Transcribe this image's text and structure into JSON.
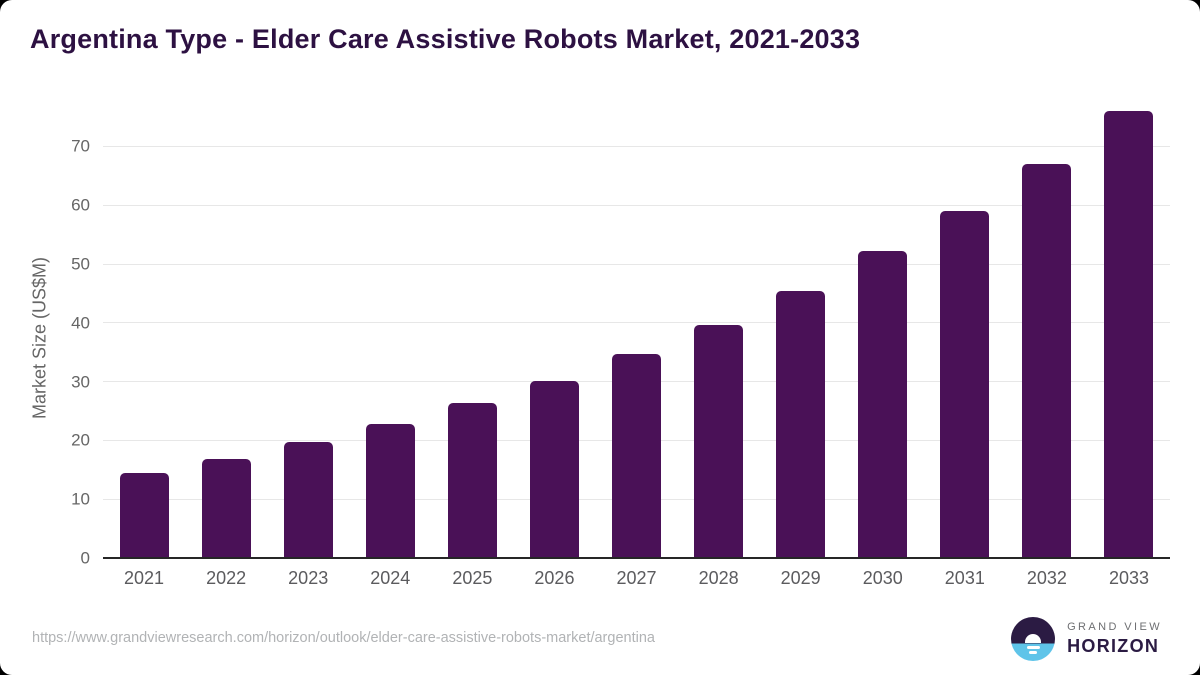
{
  "chart": {
    "title": "Argentina Type - Elder Care Assistive Robots Market, 2021-2033",
    "ylabel": "Market Size (US$M)"
  },
  "footer": {
    "source_url": "https://www.grandviewresearch.com/horizon/outlook/elder-care-assistive-robots-market/argentina",
    "logo": {
      "top_text": "GRAND VIEW",
      "bottom_text": "HORIZON"
    }
  },
  "colors": {
    "bar": "#4a1157",
    "title_text": "#2d1142",
    "axis_tick_text": "#666666",
    "x_label_text": "#5b5b5e",
    "gridline": "#e7e7e7",
    "axis_line": "#262626",
    "url_text": "#b1b3b5",
    "logo_dark": "#2b1b43",
    "logo_blue": "#5fc4e9",
    "logo_gray_text": "#6e6f72"
  },
  "chart_data": {
    "type": "bar",
    "title": "Argentina Type - Elder Care Assistive Robots Market, 2021-2033",
    "xlabel": "",
    "ylabel": "Market Size (US$M)",
    "categories": [
      "2021",
      "2022",
      "2023",
      "2024",
      "2025",
      "2026",
      "2027",
      "2028",
      "2029",
      "2030",
      "2031",
      "2032",
      "2033"
    ],
    "values": [
      14.5,
      16.9,
      19.7,
      22.8,
      26.4,
      30.1,
      34.7,
      39.7,
      45.4,
      52.2,
      59,
      67,
      76
    ],
    "ylim": [
      0,
      77.9
    ],
    "yticks": [
      0,
      10,
      20,
      30,
      40,
      50,
      60,
      70
    ],
    "grid": true,
    "legend": false,
    "bar_color": "#4a1157"
  }
}
